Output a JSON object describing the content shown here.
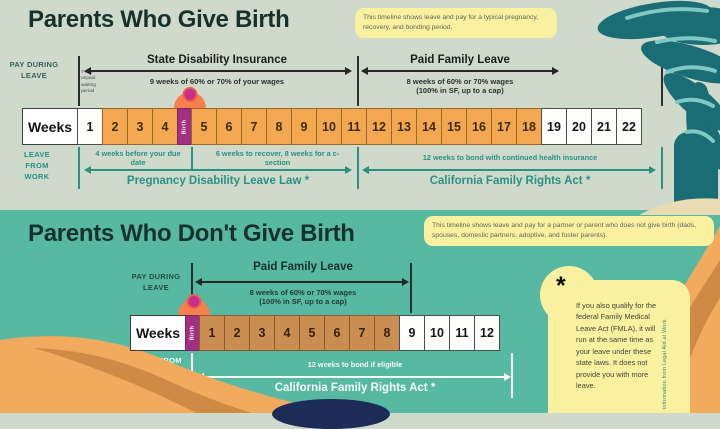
{
  "palette": {
    "bg_top": "#cfdacd",
    "bg_bottom": "#58b9a2",
    "teal_text": "#2a9183",
    "orange_cell": "#f4a851",
    "tan_cell": "#cb8e52",
    "birth_purple": "#a23082",
    "note_yellow": "#f9f1a0",
    "palm_teal": "#1a6d75",
    "dune_orange": "#f2aa5e",
    "dune_shadow": "#cf8a45",
    "navy": "#1d2b57"
  },
  "section1": {
    "title": "Parents Who Give Birth",
    "note": "This timeline shows leave and pay for a typical pregnancy, recovery, and bonding period.",
    "pay_label": "PAY DURING LEAVE",
    "waiting_note": "7-day unpaid waiting period",
    "sdi_title": "State Disability Insurance",
    "sdi_desc": "9 weeks of 60% or 70% of your wages",
    "pfl_title": "Paid Family Leave",
    "pfl_desc1": "8 weeks of 60% or 70% wages",
    "pfl_desc2": "(100% in SF, up to a cap)",
    "weeks_label": "Weeks",
    "cells": [
      {
        "n": "1",
        "fill": "white"
      },
      {
        "n": "2",
        "fill": "orange"
      },
      {
        "n": "3",
        "fill": "orange"
      },
      {
        "n": "4",
        "fill": "orange"
      },
      {
        "n": "Birth",
        "fill": "birth"
      },
      {
        "n": "5",
        "fill": "orange"
      },
      {
        "n": "6",
        "fill": "orange"
      },
      {
        "n": "7",
        "fill": "orange"
      },
      {
        "n": "8",
        "fill": "orange"
      },
      {
        "n": "9",
        "fill": "orange"
      },
      {
        "n": "10",
        "fill": "orange"
      },
      {
        "n": "11",
        "fill": "orange"
      },
      {
        "n": "12",
        "fill": "orange"
      },
      {
        "n": "13",
        "fill": "orange"
      },
      {
        "n": "14",
        "fill": "orange"
      },
      {
        "n": "15",
        "fill": "orange"
      },
      {
        "n": "16",
        "fill": "orange"
      },
      {
        "n": "17",
        "fill": "orange"
      },
      {
        "n": "18",
        "fill": "orange"
      },
      {
        "n": "19",
        "fill": "white"
      },
      {
        "n": "20",
        "fill": "white"
      },
      {
        "n": "21",
        "fill": "white"
      },
      {
        "n": "22",
        "fill": "white"
      }
    ],
    "leave_label": "LEAVE FROM WORK",
    "ann_before": "4 weeks before your due date",
    "ann_recover": "6 weeks to recover, 8 weeks for a c-section",
    "ann_bond": "12 weeks to bond with continued health insurance",
    "pdl_label": "Pregnancy Disability Leave Law *",
    "cfra_label": "California Family Rights Act *"
  },
  "section2": {
    "title": "Parents Who Don't Give Birth",
    "note": "This timeline shows leave and pay for a partner or parent who does not give birth (dads, spouses, domestic partners, adoptive, and foster parents).",
    "pay_label": "PAY DURING LEAVE",
    "pfl_title": "Paid Family Leave",
    "pfl_desc1": "8 weeks of 60% or 70% wages",
    "pfl_desc2": "(100% in SF, up to a cap)",
    "weeks_label": "Weeks",
    "cells": [
      {
        "n": "Birth",
        "fill": "birth"
      },
      {
        "n": "1",
        "fill": "tan"
      },
      {
        "n": "2",
        "fill": "tan"
      },
      {
        "n": "3",
        "fill": "tan"
      },
      {
        "n": "4",
        "fill": "tan"
      },
      {
        "n": "5",
        "fill": "tan"
      },
      {
        "n": "6",
        "fill": "tan"
      },
      {
        "n": "7",
        "fill": "tan"
      },
      {
        "n": "8",
        "fill": "tan"
      },
      {
        "n": "9",
        "fill": "white"
      },
      {
        "n": "10",
        "fill": "white"
      },
      {
        "n": "11",
        "fill": "white"
      },
      {
        "n": "12",
        "fill": "white"
      }
    ],
    "leave_label": "LEAVE FROM WORK",
    "ann_bond": "12 weeks to bond if eligible",
    "cfra_label": "California Family Rights Act *"
  },
  "footnote": {
    "symbol": "*",
    "text": "If you also qualify for the federal Family Medical Leave Act (FMLA), it will run at the same time as your leave under these state laws. It does not provide you with more leave.",
    "credit": "information from Legal Aid at Work."
  }
}
